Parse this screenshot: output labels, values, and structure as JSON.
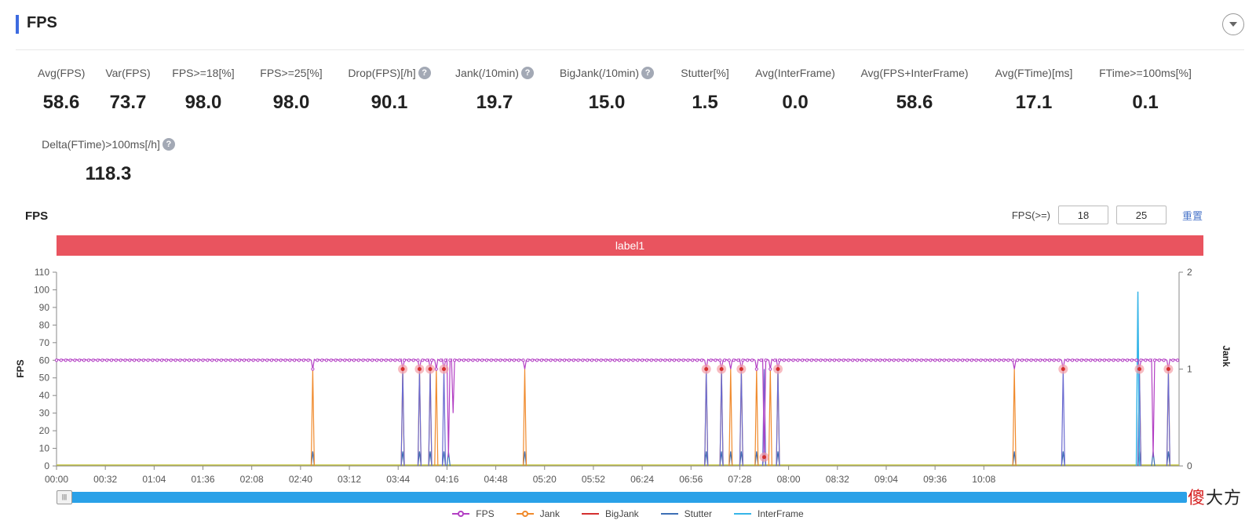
{
  "header": {
    "title": "FPS"
  },
  "metrics": [
    {
      "label": "Avg(FPS)",
      "value": "58.6",
      "help": false
    },
    {
      "label": "Var(FPS)",
      "value": "73.7",
      "help": false
    },
    {
      "label": "FPS>=18[%]",
      "value": "98.0",
      "help": false
    },
    {
      "label": "FPS>=25[%]",
      "value": "98.0",
      "help": false
    },
    {
      "label": "Drop(FPS)[/h]",
      "value": "90.1",
      "help": true
    },
    {
      "label": "Jank(/10min)",
      "value": "19.7",
      "help": true
    },
    {
      "label": "BigJank(/10min)",
      "value": "15.0",
      "help": true
    },
    {
      "label": "Stutter[%]",
      "value": "1.5",
      "help": false
    },
    {
      "label": "Avg(InterFrame)",
      "value": "0.0",
      "help": false
    },
    {
      "label": "Avg(FPS+InterFrame)",
      "value": "58.6",
      "help": false
    },
    {
      "label": "Avg(FTime)[ms]",
      "value": "17.1",
      "help": false
    },
    {
      "label": "FTime>=100ms[%]",
      "value": "0.1",
      "help": false
    },
    {
      "label": "Delta(FTime)>100ms[/h]",
      "value": "118.3",
      "help": true
    }
  ],
  "chart_section": {
    "title": "FPS",
    "filter_label": "FPS(>=)",
    "filter_low": "18",
    "filter_high": "25",
    "reset_label": "重置",
    "label_band": "label1"
  },
  "watermark": {
    "part1": "傻",
    "part2": "大方"
  },
  "chart_data": {
    "type": "line",
    "xlabel": "",
    "ylabel": "FPS",
    "y2label": "Jank",
    "ylim": [
      0,
      110
    ],
    "y2lim": [
      0,
      2
    ],
    "yticks": [
      0,
      10,
      20,
      30,
      40,
      50,
      60,
      70,
      80,
      90,
      100,
      110
    ],
    "y2ticks": [
      0,
      1,
      2
    ],
    "x_ticks": [
      "00:00",
      "00:32",
      "01:04",
      "01:36",
      "02:08",
      "02:40",
      "03:12",
      "03:44",
      "04:16",
      "04:48",
      "05:20",
      "05:52",
      "06:24",
      "06:56",
      "07:28",
      "08:00",
      "08:32",
      "09:04",
      "09:36",
      "10:08"
    ],
    "x_range_seconds": [
      0,
      636
    ],
    "fps_baseline": 60,
    "fps_drops": [
      {
        "t": 168,
        "fps": 55
      },
      {
        "t": 227,
        "fps": 55
      },
      {
        "t": 238,
        "fps": 55
      },
      {
        "t": 245,
        "fps": 55
      },
      {
        "t": 249,
        "fps": 55
      },
      {
        "t": 254,
        "fps": 55
      },
      {
        "t": 257,
        "fps": 5
      },
      {
        "t": 260,
        "fps": 30
      },
      {
        "t": 307,
        "fps": 55
      },
      {
        "t": 426,
        "fps": 55
      },
      {
        "t": 436,
        "fps": 55
      },
      {
        "t": 442,
        "fps": 55
      },
      {
        "t": 449,
        "fps": 55
      },
      {
        "t": 459,
        "fps": 55
      },
      {
        "t": 464,
        "fps": 5
      },
      {
        "t": 468,
        "fps": 55
      },
      {
        "t": 473,
        "fps": 55
      },
      {
        "t": 628,
        "fps": 55
      },
      {
        "t": 660,
        "fps": 55
      },
      {
        "t": 710,
        "fps": 55
      },
      {
        "t": 719,
        "fps": 5
      },
      {
        "t": 729,
        "fps": 55
      }
    ],
    "series": [
      {
        "name": "FPS",
        "color": "#b33fc4"
      },
      {
        "name": "Jank",
        "color": "#f08a2c"
      },
      {
        "name": "BigJank",
        "color": "#d42f2f"
      },
      {
        "name": "Stutter",
        "color": "#3d6fb5"
      },
      {
        "name": "InterFrame",
        "color": "#36b5e8"
      }
    ],
    "jank_events": [
      168,
      227,
      238,
      245,
      249,
      307,
      426,
      436,
      442,
      449,
      459,
      468,
      473,
      628,
      710,
      729
    ],
    "bigjank_events": [
      227,
      238,
      245,
      254,
      426,
      436,
      449,
      464,
      473,
      660,
      710,
      729
    ],
    "stutter_events": [
      168,
      227,
      238,
      245,
      254,
      257,
      307,
      426,
      436,
      442,
      449,
      459,
      464,
      473,
      628,
      660,
      710,
      719,
      729
    ],
    "interframe_spike": {
      "t": 709,
      "value": 1.8
    }
  }
}
